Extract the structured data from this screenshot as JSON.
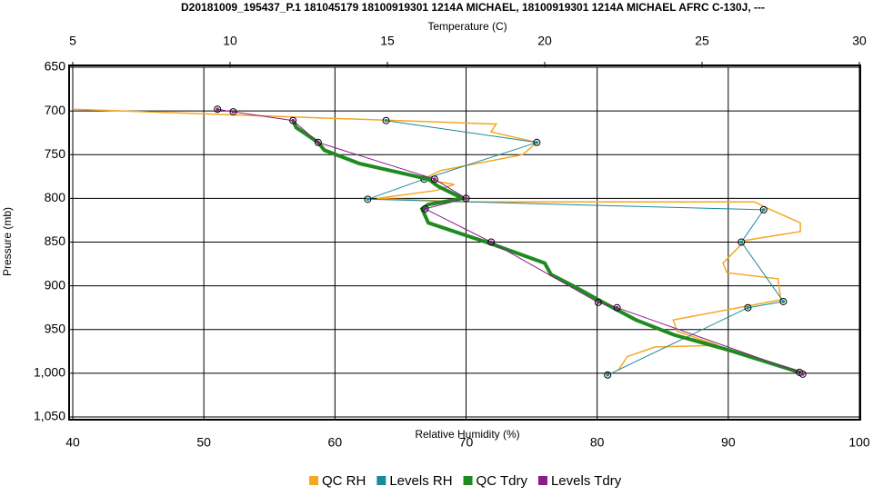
{
  "chart_data": {
    "type": "profile",
    "title": "D20181009_195437_P.1 181045179 18100919301 1214A MICHAEL, 18100919301 1214A MICHAEL AFRC C-130J, ---",
    "x2_label": "Temperature (C)",
    "x_label": "Relative Humidity (%)",
    "y_label": "Pressure (mb)",
    "xlim": [
      40,
      100
    ],
    "xticks": [
      40,
      50,
      60,
      70,
      80,
      90,
      100
    ],
    "x2lim": [
      5,
      30
    ],
    "x2ticks": [
      5,
      10,
      15,
      20,
      25,
      30
    ],
    "ylim": [
      650,
      1050
    ],
    "y_inverted": true,
    "yticks": [
      650,
      700,
      750,
      800,
      850,
      900,
      950,
      {
        "value": 1000,
        "label": "1,000"
      },
      {
        "value": 1050,
        "label": "1,050"
      }
    ],
    "grid": true,
    "legend": "bottom",
    "series": [
      {
        "name": "QC RH",
        "color": "#f5a623",
        "axis": "x",
        "markers": false,
        "x": [
          40,
          72.3,
          71.9,
          75.4,
          74.3,
          68.1,
          66.7,
          69.1,
          67.7,
          63.2,
          69.8,
          92.0,
          93.1,
          95.5,
          95.5,
          91.3,
          89.6,
          89.9,
          93.8,
          94.0,
          85.8,
          86.1,
          89.2,
          84.4,
          82.3,
          81.6
        ],
        "y": [
          698,
          715,
          724,
          736,
          750,
          768,
          778,
          784,
          791,
          800,
          804,
          804,
          812,
          828,
          838,
          848,
          874,
          885,
          892,
          916,
          939,
          952,
          968,
          970,
          981,
          997
        ]
      },
      {
        "name": "Levels RH",
        "color": "#1a8a99",
        "axis": "x",
        "markers": true,
        "x": [
          63.9,
          75.4,
          66.8,
          62.5,
          92.7,
          91.0,
          94.2,
          91.5,
          80.8
        ],
        "y": [
          711,
          736,
          778,
          801,
          813,
          850,
          918,
          925,
          1002
        ]
      },
      {
        "name": "QC Tdry",
        "color": "#1f8a1f",
        "axis": "x2",
        "markers": false,
        "x": [
          12.0,
          12.1,
          12.8,
          13.0,
          14.1,
          16.3,
          16.6,
          17.4,
          16.3,
          16.1,
          16.3,
          18.3,
          20.0,
          20.2,
          20.9,
          21.8,
          22.9,
          24.1,
          25.8,
          28.1
        ],
        "y": [
          711,
          719,
          736,
          745,
          760,
          778,
          786,
          800,
          807,
          812,
          828,
          852,
          874,
          887,
          900,
          918,
          939,
          956,
          973,
          999
        ]
      },
      {
        "name": "Levels Tdry",
        "color": "#8b1a8b",
        "axis": "x2",
        "markers": true,
        "x": [
          9.6,
          10.1,
          12.0,
          12.8,
          16.5,
          17.5,
          16.2,
          18.3,
          21.7,
          22.3,
          28.1,
          28.2
        ],
        "y": [
          698,
          701,
          711,
          736,
          778,
          800,
          812,
          850,
          919,
          925,
          999,
          1001
        ]
      }
    ]
  }
}
